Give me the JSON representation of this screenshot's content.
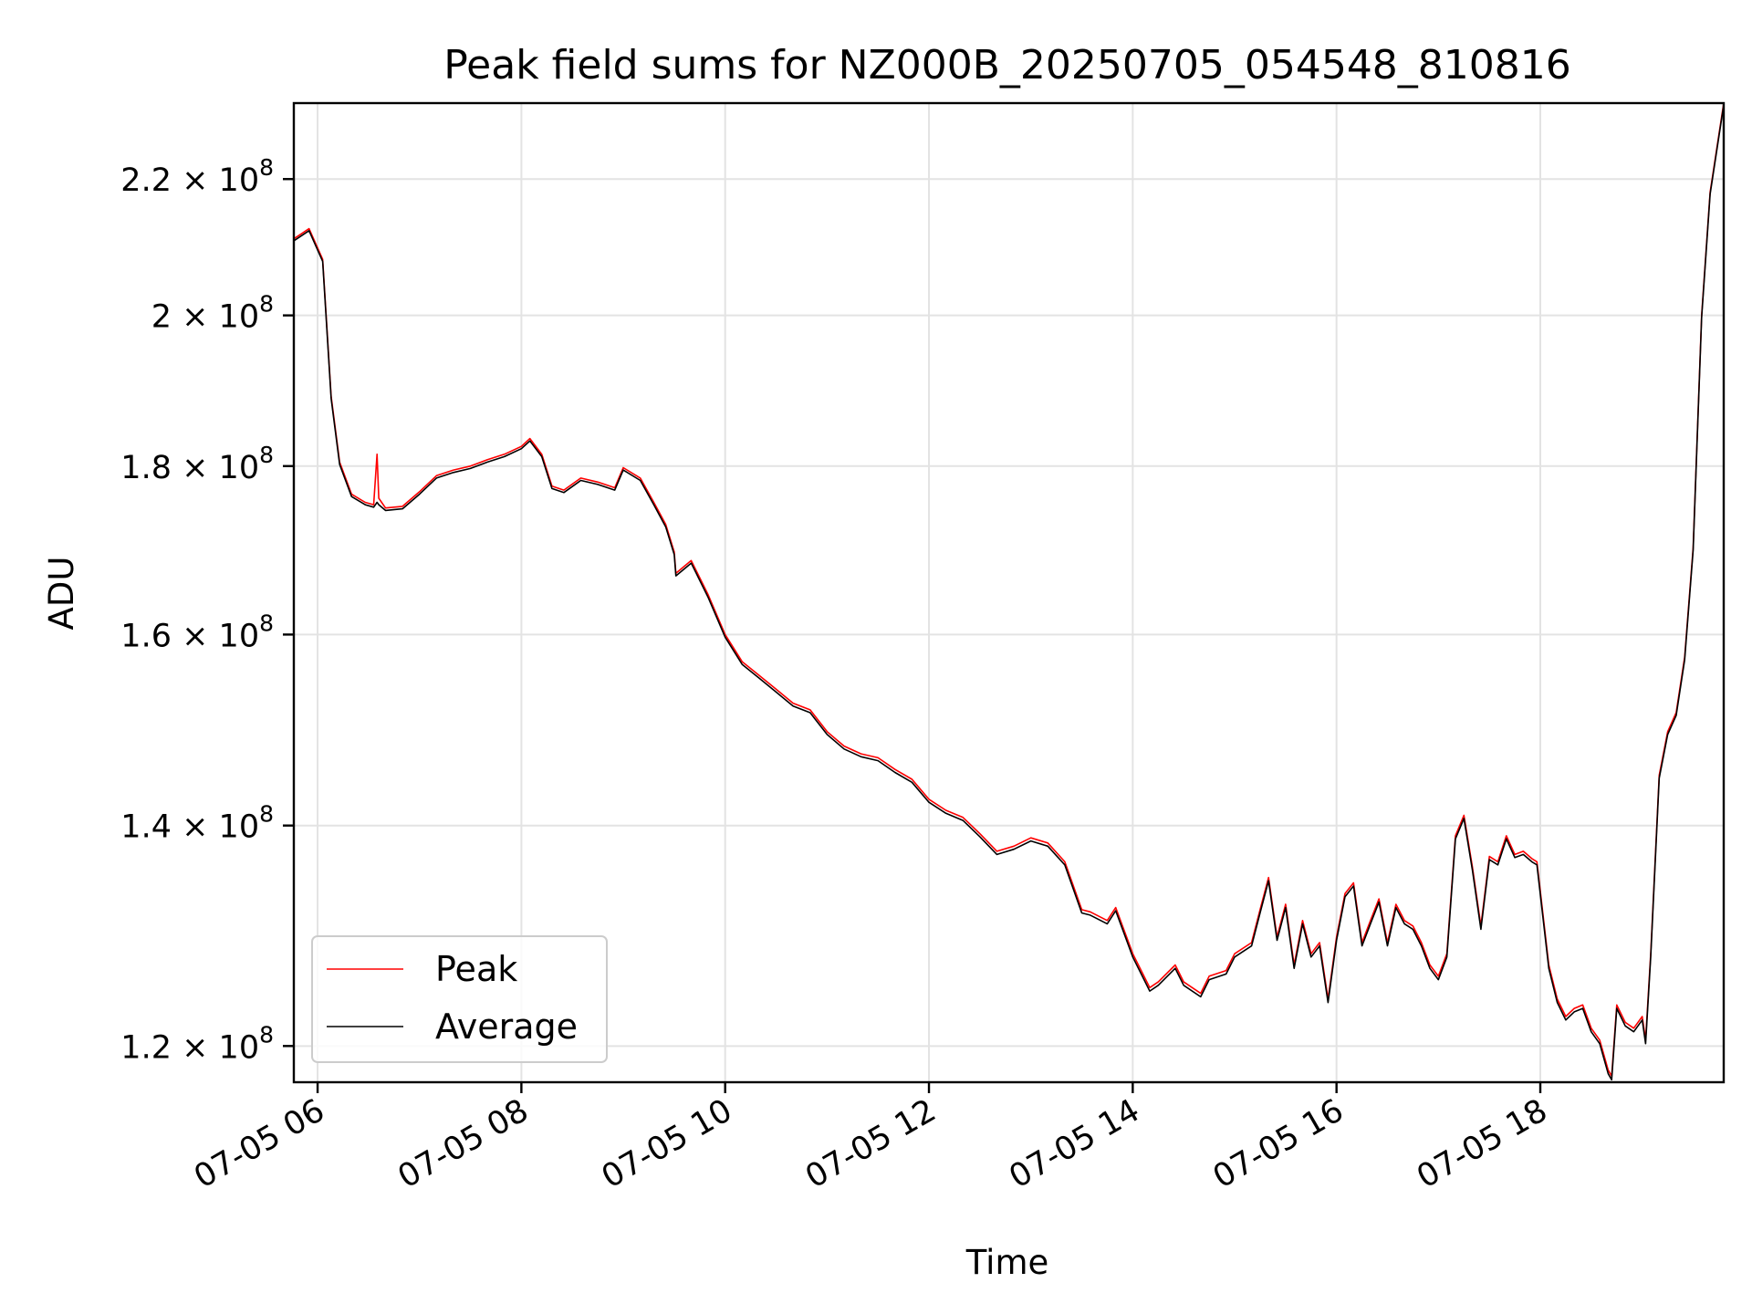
{
  "chart_data": {
    "type": "line",
    "title": "Peak field sums for NZ000B_20250705_054548_810816",
    "xlabel": "Time",
    "ylabel": "ADU",
    "x_range": [
      "2025-07-05 05:46",
      "2025-07-05 19:48"
    ],
    "ylim": [
      117000000,
      232000000
    ],
    "y_scale": "log",
    "grid": true,
    "legend_position": "lower-left",
    "x_ticks": [
      {
        "label": "07-05 06",
        "value": "2025-07-05 06:00"
      },
      {
        "label": "07-05 08",
        "value": "2025-07-05 08:00"
      },
      {
        "label": "07-05 10",
        "value": "2025-07-05 10:00"
      },
      {
        "label": "07-05 12",
        "value": "2025-07-05 12:00"
      },
      {
        "label": "07-05 14",
        "value": "2025-07-05 14:00"
      },
      {
        "label": "07-05 16",
        "value": "2025-07-05 16:00"
      },
      {
        "label": "07-05 18",
        "value": "2025-07-05 18:00"
      }
    ],
    "y_ticks": [
      {
        "value": 220000000,
        "mantissa": "2.2",
        "base": "10",
        "exponent": "8"
      },
      {
        "value": 200000000,
        "mantissa": "2",
        "base": "10",
        "exponent": "8"
      },
      {
        "value": 180000000,
        "mantissa": "1.8",
        "base": "10",
        "exponent": "8"
      },
      {
        "value": 160000000,
        "mantissa": "1.6",
        "base": "10",
        "exponent": "8"
      },
      {
        "value": 140000000,
        "mantissa": "1.4",
        "base": "10",
        "exponent": "8"
      },
      {
        "value": 120000000,
        "mantissa": "1.2",
        "base": "10",
        "exponent": "8"
      }
    ],
    "series": [
      {
        "name": "Peak",
        "color": "#ff0000",
        "x": [
          "2025-07-05 05:46",
          "2025-07-05 05:55",
          "2025-07-05 06:03",
          "2025-07-05 06:08",
          "2025-07-05 06:13",
          "2025-07-05 06:20",
          "2025-07-05 06:28",
          "2025-07-05 06:33",
          "2025-07-05 06:35",
          "2025-07-05 06:36",
          "2025-07-05 06:40",
          "2025-07-05 06:50",
          "2025-07-05 07:00",
          "2025-07-05 07:10",
          "2025-07-05 07:20",
          "2025-07-05 07:30",
          "2025-07-05 07:40",
          "2025-07-05 07:50",
          "2025-07-05 08:00",
          "2025-07-05 08:05",
          "2025-07-05 08:12",
          "2025-07-05 08:18",
          "2025-07-05 08:25",
          "2025-07-05 08:35",
          "2025-07-05 08:45",
          "2025-07-05 08:55",
          "2025-07-05 09:00",
          "2025-07-05 09:10",
          "2025-07-05 09:18",
          "2025-07-05 09:25",
          "2025-07-05 09:30",
          "2025-07-05 09:31",
          "2025-07-05 09:40",
          "2025-07-05 09:50",
          "2025-07-05 10:00",
          "2025-07-05 10:10",
          "2025-07-05 10:20",
          "2025-07-05 10:30",
          "2025-07-05 10:40",
          "2025-07-05 10:50",
          "2025-07-05 11:00",
          "2025-07-05 11:10",
          "2025-07-05 11:20",
          "2025-07-05 11:30",
          "2025-07-05 11:40",
          "2025-07-05 11:50",
          "2025-07-05 12:00",
          "2025-07-05 12:10",
          "2025-07-05 12:20",
          "2025-07-05 12:30",
          "2025-07-05 12:40",
          "2025-07-05 12:50",
          "2025-07-05 13:00",
          "2025-07-05 13:10",
          "2025-07-05 13:20",
          "2025-07-05 13:30",
          "2025-07-05 13:35",
          "2025-07-05 13:45",
          "2025-07-05 13:50",
          "2025-07-05 14:00",
          "2025-07-05 14:10",
          "2025-07-05 14:15",
          "2025-07-05 14:25",
          "2025-07-05 14:30",
          "2025-07-05 14:40",
          "2025-07-05 14:45",
          "2025-07-05 14:55",
          "2025-07-05 15:00",
          "2025-07-05 15:10",
          "2025-07-05 15:15",
          "2025-07-05 15:20",
          "2025-07-05 15:25",
          "2025-07-05 15:30",
          "2025-07-05 15:35",
          "2025-07-05 15:40",
          "2025-07-05 15:45",
          "2025-07-05 15:50",
          "2025-07-05 15:55",
          "2025-07-05 16:00",
          "2025-07-05 16:05",
          "2025-07-05 16:10",
          "2025-07-05 16:15",
          "2025-07-05 16:20",
          "2025-07-05 16:25",
          "2025-07-05 16:30",
          "2025-07-05 16:35",
          "2025-07-05 16:40",
          "2025-07-05 16:45",
          "2025-07-05 16:50",
          "2025-07-05 16:55",
          "2025-07-05 17:00",
          "2025-07-05 17:05",
          "2025-07-05 17:10",
          "2025-07-05 17:15",
          "2025-07-05 17:20",
          "2025-07-05 17:25",
          "2025-07-05 17:30",
          "2025-07-05 17:35",
          "2025-07-05 17:40",
          "2025-07-05 17:45",
          "2025-07-05 17:50",
          "2025-07-05 17:55",
          "2025-07-05 17:58",
          "2025-07-05 18:05",
          "2025-07-05 18:10",
          "2025-07-05 18:15",
          "2025-07-05 18:20",
          "2025-07-05 18:25",
          "2025-07-05 18:30",
          "2025-07-05 18:35",
          "2025-07-05 18:40",
          "2025-07-05 18:42",
          "2025-07-05 18:45",
          "2025-07-05 18:50",
          "2025-07-05 18:55",
          "2025-07-05 19:00",
          "2025-07-05 19:02",
          "2025-07-05 19:05",
          "2025-07-05 19:10",
          "2025-07-05 19:15",
          "2025-07-05 19:20",
          "2025-07-05 19:25",
          "2025-07-05 19:30",
          "2025-07-05 19:35",
          "2025-07-05 19:40",
          "2025-07-05 19:48"
        ],
        "values": [
          211000000,
          212500000,
          208000000,
          189000000,
          180500000,
          176500000,
          175500000,
          175200000,
          181500000,
          176000000,
          174800000,
          175000000,
          176800000,
          178800000,
          179500000,
          180000000,
          180800000,
          181500000,
          182500000,
          183500000,
          181500000,
          177500000,
          177000000,
          178500000,
          178000000,
          177300000,
          179800000,
          178500000,
          175500000,
          172800000,
          169500000,
          167000000,
          168500000,
          164500000,
          160000000,
          157000000,
          155500000,
          154000000,
          152500000,
          151800000,
          149500000,
          148000000,
          147200000,
          146800000,
          145600000,
          144600000,
          142600000,
          141500000,
          140800000,
          139200000,
          137500000,
          138000000,
          138800000,
          138300000,
          136500000,
          132000000,
          131800000,
          131000000,
          132200000,
          128000000,
          125000000,
          125500000,
          127000000,
          125500000,
          124500000,
          126000000,
          126500000,
          128000000,
          129000000,
          132000000,
          135000000,
          129500000,
          132500000,
          127000000,
          131000000,
          128000000,
          129000000,
          124000000,
          129500000,
          133500000,
          134500000,
          129000000,
          131000000,
          133000000,
          129000000,
          132500000,
          131000000,
          130500000,
          129000000,
          127000000,
          126000000,
          128000000,
          139000000,
          141000000,
          136000000,
          130500000,
          137000000,
          136500000,
          139000000,
          137200000,
          137500000,
          136800000,
          136500000,
          127000000,
          124000000,
          122500000,
          123200000,
          123500000,
          121500000,
          120500000,
          118000000,
          117500000,
          123500000,
          122000000,
          121500000,
          122500000,
          120500000,
          128000000,
          145000000,
          149500000,
          151500000,
          157500000,
          170000000,
          200000000,
          218000000,
          232000000
        ]
      },
      {
        "name": "Average",
        "color": "#000000",
        "x": [
          "2025-07-05 05:46",
          "2025-07-05 05:55",
          "2025-07-05 06:03",
          "2025-07-05 06:08",
          "2025-07-05 06:13",
          "2025-07-05 06:20",
          "2025-07-05 06:28",
          "2025-07-05 06:33",
          "2025-07-05 06:35",
          "2025-07-05 06:36",
          "2025-07-05 06:40",
          "2025-07-05 06:50",
          "2025-07-05 07:00",
          "2025-07-05 07:10",
          "2025-07-05 07:20",
          "2025-07-05 07:30",
          "2025-07-05 07:40",
          "2025-07-05 07:50",
          "2025-07-05 08:00",
          "2025-07-05 08:05",
          "2025-07-05 08:12",
          "2025-07-05 08:18",
          "2025-07-05 08:25",
          "2025-07-05 08:35",
          "2025-07-05 08:45",
          "2025-07-05 08:55",
          "2025-07-05 09:00",
          "2025-07-05 09:10",
          "2025-07-05 09:18",
          "2025-07-05 09:25",
          "2025-07-05 09:30",
          "2025-07-05 09:31",
          "2025-07-05 09:40",
          "2025-07-05 09:50",
          "2025-07-05 10:00",
          "2025-07-05 10:10",
          "2025-07-05 10:20",
          "2025-07-05 10:30",
          "2025-07-05 10:40",
          "2025-07-05 10:50",
          "2025-07-05 11:00",
          "2025-07-05 11:10",
          "2025-07-05 11:20",
          "2025-07-05 11:30",
          "2025-07-05 11:40",
          "2025-07-05 11:50",
          "2025-07-05 12:00",
          "2025-07-05 12:10",
          "2025-07-05 12:20",
          "2025-07-05 12:30",
          "2025-07-05 12:40",
          "2025-07-05 12:50",
          "2025-07-05 13:00",
          "2025-07-05 13:10",
          "2025-07-05 13:20",
          "2025-07-05 13:30",
          "2025-07-05 13:35",
          "2025-07-05 13:45",
          "2025-07-05 13:50",
          "2025-07-05 14:00",
          "2025-07-05 14:10",
          "2025-07-05 14:15",
          "2025-07-05 14:25",
          "2025-07-05 14:30",
          "2025-07-05 14:40",
          "2025-07-05 14:45",
          "2025-07-05 14:55",
          "2025-07-05 15:00",
          "2025-07-05 15:10",
          "2025-07-05 15:15",
          "2025-07-05 15:20",
          "2025-07-05 15:25",
          "2025-07-05 15:30",
          "2025-07-05 15:35",
          "2025-07-05 15:40",
          "2025-07-05 15:45",
          "2025-07-05 15:50",
          "2025-07-05 15:55",
          "2025-07-05 16:00",
          "2025-07-05 16:05",
          "2025-07-05 16:10",
          "2025-07-05 16:15",
          "2025-07-05 16:20",
          "2025-07-05 16:25",
          "2025-07-05 16:30",
          "2025-07-05 16:35",
          "2025-07-05 16:40",
          "2025-07-05 16:45",
          "2025-07-05 16:50",
          "2025-07-05 16:55",
          "2025-07-05 17:00",
          "2025-07-05 17:05",
          "2025-07-05 17:10",
          "2025-07-05 17:15",
          "2025-07-05 17:20",
          "2025-07-05 17:25",
          "2025-07-05 17:30",
          "2025-07-05 17:35",
          "2025-07-05 17:40",
          "2025-07-05 17:45",
          "2025-07-05 17:50",
          "2025-07-05 17:55",
          "2025-07-05 17:58",
          "2025-07-05 18:05",
          "2025-07-05 18:10",
          "2025-07-05 18:15",
          "2025-07-05 18:20",
          "2025-07-05 18:25",
          "2025-07-05 18:30",
          "2025-07-05 18:35",
          "2025-07-05 18:40",
          "2025-07-05 18:42",
          "2025-07-05 18:45",
          "2025-07-05 18:50",
          "2025-07-05 18:55",
          "2025-07-05 19:00",
          "2025-07-05 19:02",
          "2025-07-05 19:05",
          "2025-07-05 19:10",
          "2025-07-05 19:15",
          "2025-07-05 19:20",
          "2025-07-05 19:25",
          "2025-07-05 19:30",
          "2025-07-05 19:35",
          "2025-07-05 19:40",
          "2025-07-05 19:48"
        ],
        "values": [
          210700000,
          212200000,
          207700000,
          188700000,
          180200000,
          176200000,
          175200000,
          174900000,
          175500000,
          175200000,
          174500000,
          174700000,
          176500000,
          178500000,
          179200000,
          179700000,
          180500000,
          181200000,
          182200000,
          183200000,
          181200000,
          177200000,
          176700000,
          178200000,
          177700000,
          177000000,
          179500000,
          178200000,
          175200000,
          172500000,
          169200000,
          166700000,
          168200000,
          164200000,
          159700000,
          156700000,
          155200000,
          153700000,
          152200000,
          151500000,
          149200000,
          147700000,
          146900000,
          146500000,
          145300000,
          144300000,
          142300000,
          141200000,
          140500000,
          138900000,
          137200000,
          137700000,
          138500000,
          138000000,
          136200000,
          131700000,
          131500000,
          130700000,
          131900000,
          127700000,
          124700000,
          125200000,
          126700000,
          125200000,
          124200000,
          125700000,
          126200000,
          127700000,
          128700000,
          131700000,
          134700000,
          129200000,
          132200000,
          126700000,
          130700000,
          127700000,
          128700000,
          123700000,
          129200000,
          133200000,
          134200000,
          128700000,
          130700000,
          132700000,
          128700000,
          132200000,
          130700000,
          130200000,
          128700000,
          126700000,
          125700000,
          127700000,
          138700000,
          140700000,
          135700000,
          130200000,
          136700000,
          136200000,
          138700000,
          136900000,
          137200000,
          136500000,
          136200000,
          126700000,
          123700000,
          122200000,
          122900000,
          123200000,
          121200000,
          120200000,
          117700000,
          117200000,
          123200000,
          121700000,
          121200000,
          122200000,
          120200000,
          127700000,
          144700000,
          149200000,
          151200000,
          157200000,
          169700000,
          199700000,
          217700000,
          231700000
        ]
      }
    ]
  }
}
